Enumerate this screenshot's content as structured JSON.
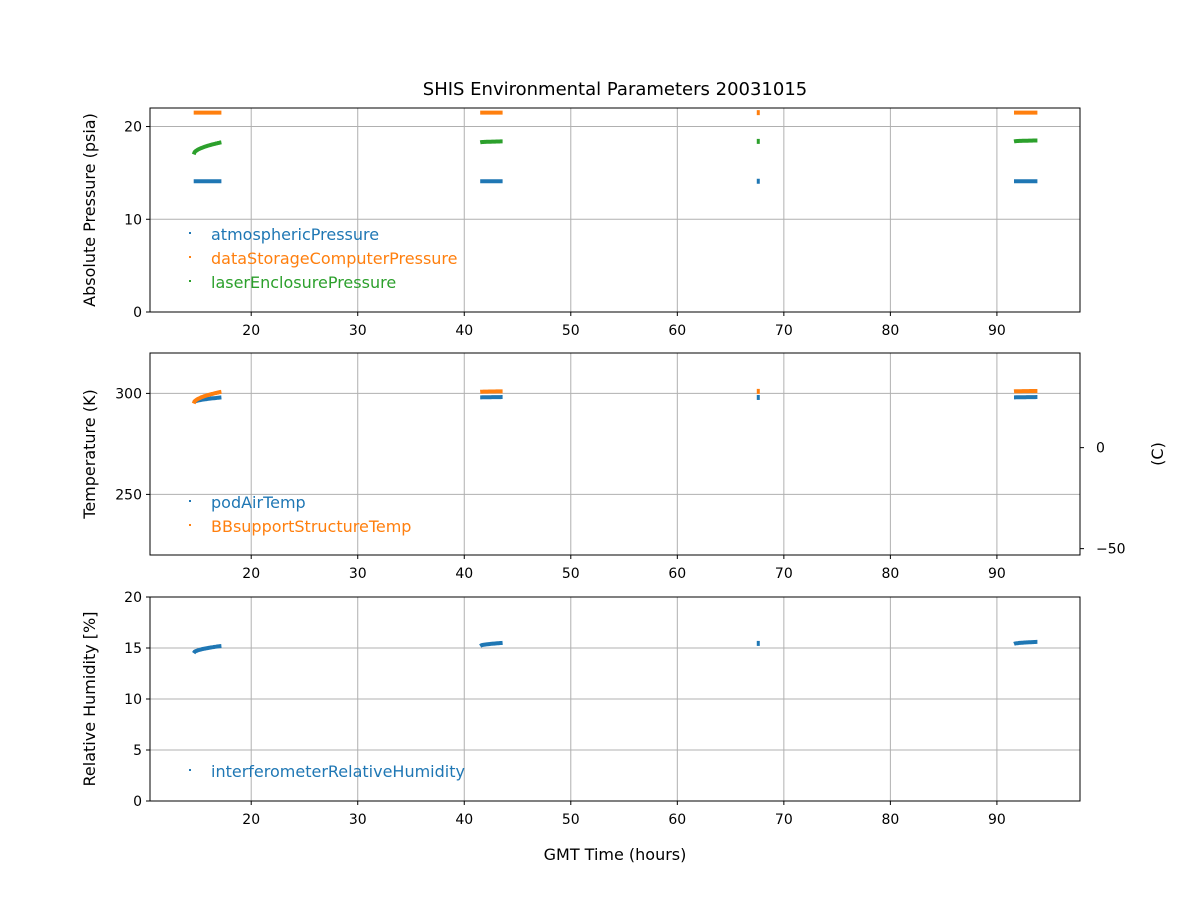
{
  "chart_data": {
    "title": "SHIS Environmental Parameters 20031015",
    "xlabel": "GMT Time (hours)",
    "xlim": [
      10.5,
      97.8
    ],
    "xticks": [
      20,
      30,
      40,
      50,
      60,
      70,
      80,
      90
    ],
    "time_segments": [
      {
        "start": 14.6,
        "end": 17.2
      },
      {
        "start": 41.5,
        "end": 43.6
      },
      {
        "start": 67.4,
        "end": 67.8
      },
      {
        "start": 91.6,
        "end": 93.8
      }
    ],
    "panels": [
      {
        "id": "pressure",
        "type": "scatter",
        "ylabel": "Absolute Pressure (psia)",
        "ylim": [
          0,
          22
        ],
        "yticks": [
          0,
          10,
          20
        ],
        "series": [
          {
            "name": "atmosphericPressure",
            "color": "#1f77b4",
            "segments": [
              [
                14.1,
                14.1
              ],
              [
                14.1,
                14.1
              ],
              [
                14.1,
                14.1
              ],
              [
                14.1,
                14.1
              ]
            ]
          },
          {
            "name": "dataStorageComputerPressure",
            "color": "#ff7f0e",
            "segments": [
              [
                21.5,
                21.5
              ],
              [
                21.5,
                21.5
              ],
              [
                21.5,
                21.5
              ],
              [
                21.5,
                21.5
              ]
            ]
          },
          {
            "name": "laserEnclosurePressure",
            "color": "#2ca02c",
            "segments": [
              [
                17.0,
                18.3
              ],
              [
                18.3,
                18.4
              ],
              [
                18.4,
                18.4
              ],
              [
                18.4,
                18.5
              ]
            ]
          }
        ]
      },
      {
        "id": "temperature",
        "type": "scatter",
        "ylabel": "Temperature (K)",
        "ylim": [
          220,
          320
        ],
        "yticks": [
          250,
          300
        ],
        "secondary_ylabel": "(C)",
        "secondary_yticks": [
          -50,
          0
        ],
        "series": [
          {
            "name": "podAirTemp",
            "color": "#1f77b4",
            "segments": [
              [
                295.5,
                298.0
              ],
              [
                298.0,
                298.2
              ],
              [
                298.0,
                298.0
              ],
              [
                298.0,
                298.2
              ]
            ]
          },
          {
            "name": "BBsupportStructureTemp",
            "color": "#ff7f0e",
            "segments": [
              [
                295.0,
                300.8
              ],
              [
                300.8,
                301.0
              ],
              [
                301.0,
                301.0
              ],
              [
                301.0,
                301.2
              ]
            ]
          }
        ]
      },
      {
        "id": "humidity",
        "type": "scatter",
        "ylabel": "Relative Humidity [%]",
        "ylim": [
          0,
          20
        ],
        "yticks": [
          0,
          5,
          10,
          15,
          20
        ],
        "series": [
          {
            "name": "interferometerRelativeHumidity",
            "color": "#1f77b4",
            "segments": [
              [
                14.5,
                15.2
              ],
              [
                15.2,
                15.5
              ],
              [
                15.3,
                15.6
              ],
              [
                15.4,
                15.6
              ]
            ]
          }
        ]
      }
    ]
  }
}
